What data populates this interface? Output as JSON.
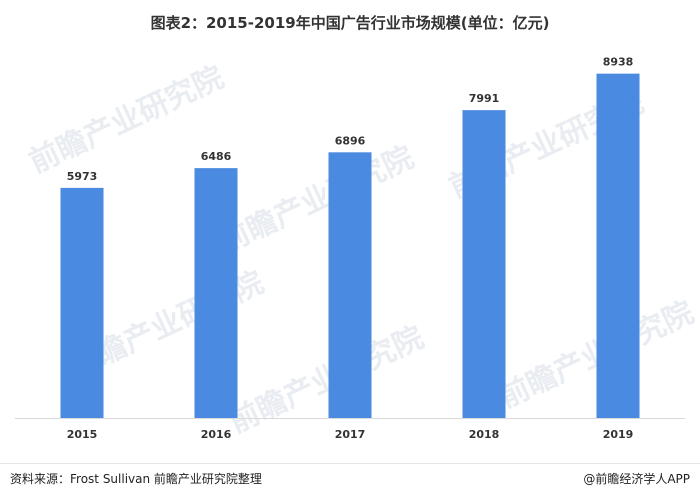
{
  "title": "图表2：2015-2019年中国广告行业市场规模(单位：亿元)",
  "colors": {
    "bar": "#4a8ae0",
    "axis": "#d9d9d9",
    "text": "#333333"
  },
  "watermark_text": "前瞻产业研究院",
  "footer": {
    "source": "资料来源：Frost Sullivan 前瞻产业研究院整理",
    "brand": "@前瞻经济学人APP"
  },
  "chart_data": {
    "type": "bar",
    "categories": [
      "2015",
      "2016",
      "2017",
      "2018",
      "2019"
    ],
    "values": [
      5973,
      6486,
      6896,
      7991,
      8938
    ],
    "title": "图表2：2015-2019年中国广告行业市场规模(单位：亿元)",
    "xlabel": "",
    "ylabel": "",
    "ylim": [
      0,
      9500
    ],
    "grid": false,
    "legend": "none",
    "data_labels": true
  }
}
